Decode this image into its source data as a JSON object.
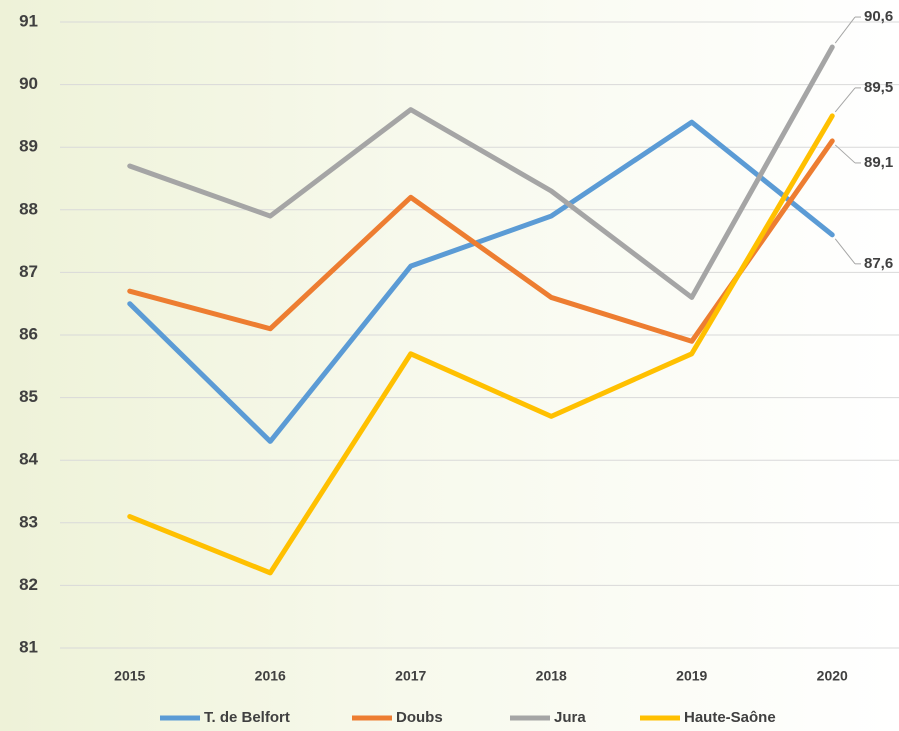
{
  "chart_data": {
    "type": "line",
    "categories": [
      "2015",
      "2016",
      "2017",
      "2018",
      "2019",
      "2020"
    ],
    "series": [
      {
        "name": "T. de Belfort",
        "color": "#5b9bd5",
        "values": [
          86.5,
          84.3,
          87.1,
          87.9,
          89.4,
          87.6
        ],
        "value_labels": [
          null,
          null,
          null,
          null,
          null,
          "87,6"
        ]
      },
      {
        "name": "Doubs",
        "color": "#ed7d31",
        "values": [
          86.7,
          86.1,
          88.2,
          86.6,
          85.9,
          89.1
        ],
        "value_labels": [
          null,
          null,
          null,
          null,
          null,
          "89,1"
        ]
      },
      {
        "name": "Jura",
        "color": "#a5a5a5",
        "values": [
          88.7,
          87.9,
          89.6,
          88.3,
          86.6,
          90.6
        ],
        "value_labels": [
          null,
          null,
          null,
          null,
          null,
          "90,6"
        ]
      },
      {
        "name": "Haute-Saône",
        "color": "#ffc000",
        "values": [
          83.1,
          82.2,
          85.7,
          84.7,
          85.7,
          89.5
        ],
        "value_labels": [
          null,
          null,
          null,
          null,
          null,
          "89,5"
        ]
      }
    ],
    "ylim": [
      81,
      91
    ],
    "yticks": [
      81,
      82,
      83,
      84,
      85,
      86,
      87,
      88,
      89,
      90,
      91
    ],
    "grid": true,
    "legend": "bottom"
  }
}
